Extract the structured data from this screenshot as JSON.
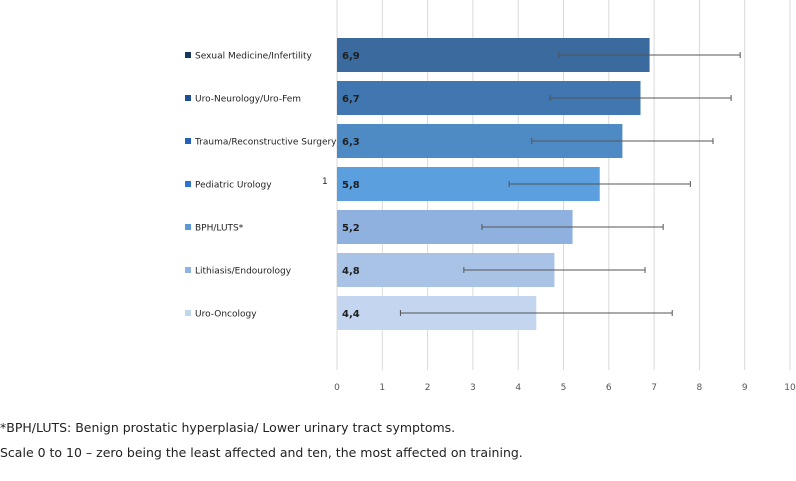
{
  "chart_data": {
    "type": "bar",
    "orientation": "horizontal",
    "categories": [
      "Sexual Medicine/Infertility",
      "Uro-Neurology/Uro-Fem",
      "Trauma/Reconstructive Surgery",
      "Pediatric Urology",
      "BPH/LUTS*",
      "Lithiasis/Endourology",
      "Uro-Oncology"
    ],
    "values": [
      6.9,
      6.7,
      6.3,
      5.8,
      5.2,
      4.8,
      4.4
    ],
    "value_labels": [
      "6,9",
      "6,7",
      "6,3",
      "5,8",
      "5,2",
      "4,8",
      "4,4"
    ],
    "error_low": [
      4.9,
      4.7,
      4.3,
      3.8,
      3.2,
      2.8,
      1.4
    ],
    "error_high": [
      8.9,
      8.7,
      8.3,
      7.8,
      7.2,
      6.8,
      7.4
    ],
    "colors": [
      "#3b6a9e",
      "#4177b0",
      "#4e8bc5",
      "#5b9fdf",
      "#8fb1e0",
      "#a9c3e7",
      "#c3d5ef"
    ],
    "legend_colors": [
      "#17375e",
      "#1f4e96",
      "#2462b8",
      "#2b74cf",
      "#5b9bd5",
      "#8fb4e3",
      "#bdd7ee"
    ],
    "xlim": [
      0,
      10
    ],
    "xticks": [
      0,
      1,
      2,
      3,
      4,
      5,
      6,
      7,
      8,
      9,
      10
    ],
    "grid": true,
    "annotation": "1",
    "title": "",
    "xlabel": "",
    "ylabel": ""
  },
  "notes": {
    "line1": "*BPH/LUTS: Benign prostatic hyperplasia/ Lower urinary tract symptoms.",
    "line2": "Scale 0 to 10 – zero being the least affected and ten, the most affected on training."
  }
}
